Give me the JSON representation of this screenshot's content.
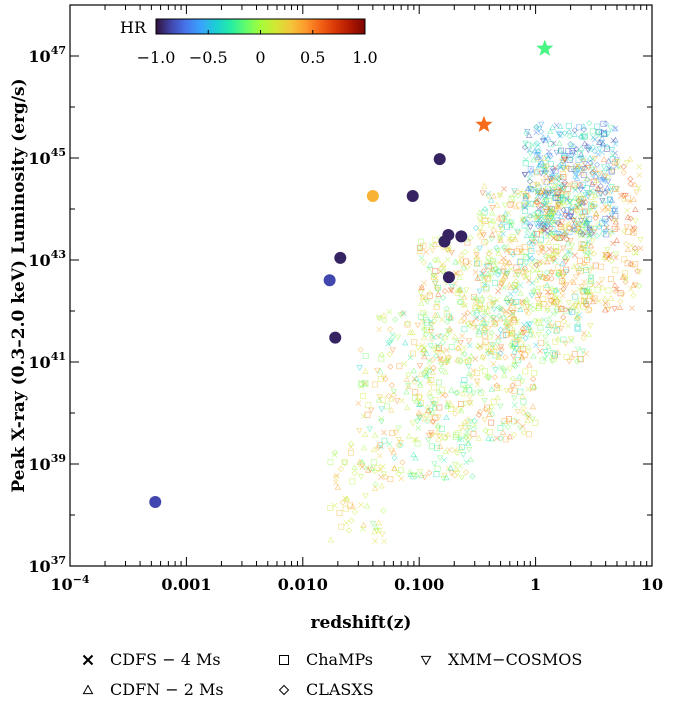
{
  "chart_data": {
    "type": "scatter",
    "title": "",
    "xlabel": "redshift(z)",
    "ylabel": "Peak X-ray (0.3–2.0 keV) Luminosity (erg/s)",
    "x_scale": "log",
    "y_scale": "log",
    "xlim": [
      0.0001,
      10
    ],
    "ylim": [
      1e+37,
      1e+48
    ],
    "x_ticks": [
      {
        "value": 0.0001,
        "label": "10",
        "exp": "−4"
      },
      {
        "value": 0.001,
        "label": "0.001",
        "exp": ""
      },
      {
        "value": 0.01,
        "label": "0.010",
        "exp": ""
      },
      {
        "value": 0.1,
        "label": "0.100",
        "exp": ""
      },
      {
        "value": 1,
        "label": "1",
        "exp": ""
      },
      {
        "value": 10,
        "label": "10",
        "exp": ""
      }
    ],
    "y_ticks": [
      {
        "value": 1e+37,
        "label": "10",
        "exp": "37"
      },
      {
        "value": 1e+39,
        "label": "10",
        "exp": "39"
      },
      {
        "value": 1e+41,
        "label": "10",
        "exp": "41"
      },
      {
        "value": 1e+43,
        "label": "10",
        "exp": "43"
      },
      {
        "value": 1e+45,
        "label": "10",
        "exp": "45"
      },
      {
        "value": 1e+47,
        "label": "10",
        "exp": "47"
      }
    ],
    "colorbar": {
      "label": "HR",
      "range": [
        -1.0,
        1.0
      ],
      "ticks": [
        {
          "value": -1.0,
          "label": "−1.0"
        },
        {
          "value": -0.5,
          "label": "−0.5"
        },
        {
          "value": 0,
          "label": "0"
        },
        {
          "value": 0.5,
          "label": "0.5"
        },
        {
          "value": 1.0,
          "label": "1.0"
        }
      ],
      "colormap": [
        "#30123b",
        "#4145ab",
        "#4675ed",
        "#39a2fc",
        "#1bcfd4",
        "#24eca6",
        "#61fc6c",
        "#a4fc3b",
        "#d1e834",
        "#f3c63a",
        "#fe9b2d",
        "#f36315",
        "#d93806",
        "#b11901",
        "#7a0402"
      ]
    },
    "legend": {
      "placement": "bottom",
      "entries": [
        {
          "name": "CDFS − 4 Ms",
          "marker": "x"
        },
        {
          "name": "ChaMPs",
          "marker": "square"
        },
        {
          "name": "XMM−COSMOS",
          "marker": "triangle-down"
        },
        {
          "name": "CDFN − 2 Ms",
          "marker": "triangle-up"
        },
        {
          "name": "CLASXS",
          "marker": "diamond"
        }
      ]
    },
    "highlighted_sources": [
      {
        "marker": "circle",
        "x": 0.00054,
        "y": 1.8e+38,
        "hr": -0.85
      },
      {
        "marker": "circle",
        "x": 0.017,
        "y": 4e+42,
        "hr": -0.85
      },
      {
        "marker": "circle",
        "x": 0.019,
        "y": 3e+41,
        "hr": -0.95
      },
      {
        "marker": "circle",
        "x": 0.021,
        "y": 1.1e+43,
        "hr": -0.95
      },
      {
        "marker": "circle",
        "x": 0.04,
        "y": 1.8e+44,
        "hr": 0.35
      },
      {
        "marker": "circle",
        "x": 0.088,
        "y": 1.8e+44,
        "hr": -0.95
      },
      {
        "marker": "circle",
        "x": 0.15,
        "y": 9.5e+44,
        "hr": -0.95
      },
      {
        "marker": "circle",
        "x": 0.165,
        "y": 2.3e+43,
        "hr": -0.95
      },
      {
        "marker": "circle",
        "x": 0.178,
        "y": 3.1e+43,
        "hr": -0.95
      },
      {
        "marker": "circle",
        "x": 0.18,
        "y": 4.6e+42,
        "hr": -0.95
      },
      {
        "marker": "circle",
        "x": 0.23,
        "y": 2.9e+43,
        "hr": -0.95
      },
      {
        "marker": "star",
        "x": 0.36,
        "y": 4.5e+45,
        "hr": 0.55
      },
      {
        "marker": "star",
        "x": 1.2,
        "y": 1.4e+47,
        "hr": -0.2
      }
    ],
    "survey_cloud": {
      "description_of_distribution": [
        {
          "x_range": [
            0.017,
            0.05
          ],
          "y_range": [
            3e+37,
            3e+39
          ],
          "hr_range": [
            -0.2,
            0.4
          ]
        },
        {
          "x_range": [
            0.03,
            0.3
          ],
          "y_range": [
            5e+38,
            1e+42
          ],
          "hr_range": [
            -0.4,
            0.5
          ]
        },
        {
          "x_range": [
            0.1,
            1.0
          ],
          "y_range": [
            3e+39,
            3e+43
          ],
          "hr_range": [
            -0.3,
            0.6
          ]
        },
        {
          "x_range": [
            0.3,
            3.0
          ],
          "y_range": [
            1e+41,
            3e+44
          ],
          "hr_range": [
            -0.5,
            0.6
          ]
        },
        {
          "x_range": [
            0.8,
            5.0
          ],
          "y_range": [
            3e+43,
            5e+45
          ],
          "hr_range": [
            -0.9,
            -0.2
          ]
        },
        {
          "x_range": [
            1.0,
            8.0
          ],
          "y_range": [
            1e+42,
            1e+45
          ],
          "hr_range": [
            0.0,
            0.7
          ]
        }
      ]
    }
  }
}
